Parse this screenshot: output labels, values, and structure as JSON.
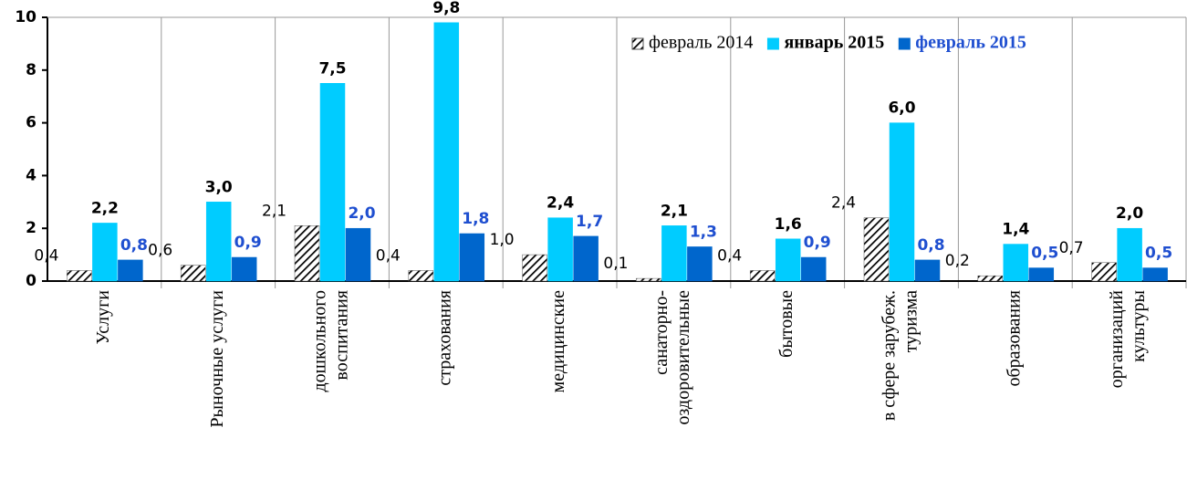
{
  "chart_data": {
    "type": "bar",
    "categories": [
      [
        "Услуги"
      ],
      [
        "Рыночные услуги"
      ],
      [
        "дошкольного",
        "воспитания"
      ],
      [
        "страхования"
      ],
      [
        "медицинские"
      ],
      [
        "санаторно-",
        "оздоровительные"
      ],
      [
        "бытовые"
      ],
      [
        "в сфере зарубеж.",
        "туризма"
      ],
      [
        "образования"
      ],
      [
        "организаций",
        "культуры"
      ]
    ],
    "series": [
      {
        "name": "февраль 2014",
        "color": "#000000",
        "hatch": true,
        "values": [
          0.4,
          0.6,
          2.1,
          0.4,
          1.0,
          0.1,
          0.4,
          2.4,
          0.2,
          0.7
        ],
        "value_labels": [
          "0,4",
          "0,6",
          "2,1",
          "0,4",
          "1,0",
          "0,1",
          "0,4",
          "2,4",
          "0,2",
          "0,7"
        ]
      },
      {
        "name": "январь 2015",
        "color": "#00ccff",
        "values": [
          2.2,
          3.0,
          7.5,
          9.8,
          2.4,
          2.1,
          1.6,
          6.0,
          1.4,
          2.0
        ],
        "value_labels": [
          "2,2",
          "3,0",
          "7,5",
          "9,8",
          "2,4",
          "2,1",
          "1,6",
          "6,0",
          "1,4",
          "2,0"
        ]
      },
      {
        "name": "февраль 2015",
        "color": "#0066cc",
        "values": [
          0.8,
          0.9,
          2.0,
          1.8,
          1.7,
          1.3,
          0.9,
          0.8,
          0.5,
          0.5
        ],
        "value_labels": [
          "0,8",
          "0,9",
          "2,0",
          "1,8",
          "1,7",
          "1,3",
          "0,9",
          "0,8",
          "0,5",
          "0,5"
        ]
      }
    ],
    "ylim": [
      0,
      10
    ],
    "yticks": [
      0,
      2,
      4,
      6,
      8,
      10
    ],
    "legend": "top-right"
  }
}
